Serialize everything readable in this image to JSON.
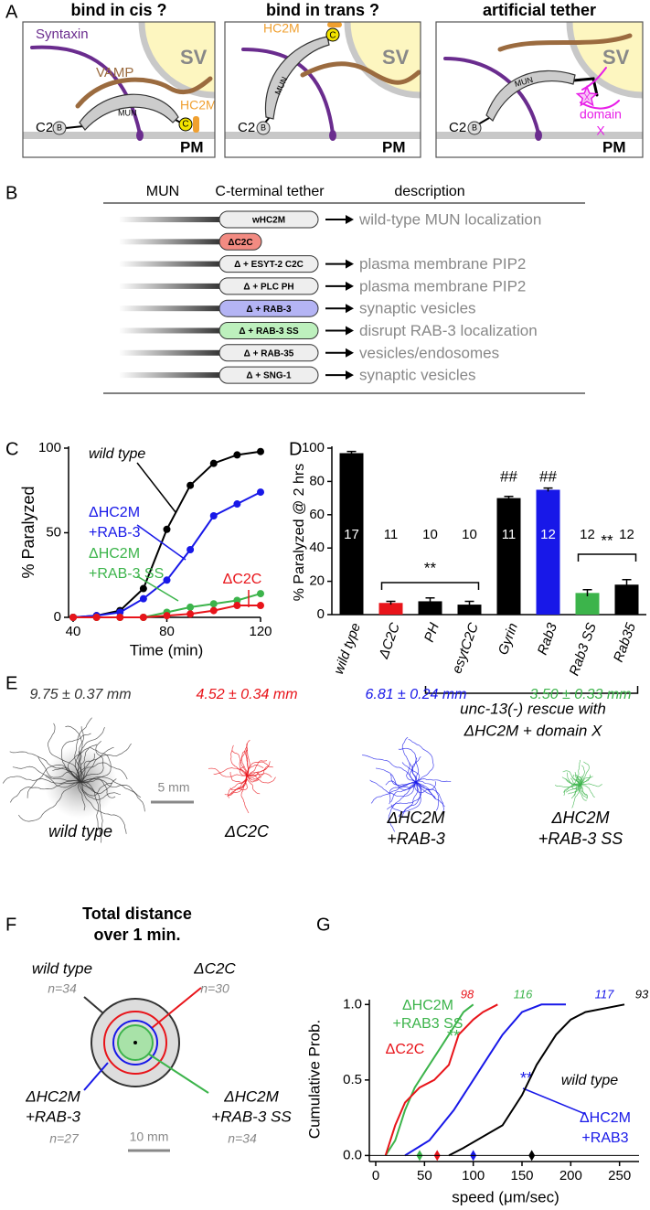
{
  "figure": {
    "panel_labels": [
      "A",
      "B",
      "C",
      "D",
      "E",
      "F",
      "G"
    ],
    "panel_a": {
      "boxes": [
        {
          "title": "bind in cis ?",
          "texts": [
            "Syntaxin",
            "VAMP",
            "MUN",
            "HC2M",
            "C",
            "C2",
            "B",
            "SV",
            "PM"
          ]
        },
        {
          "title": "bind in trans ?",
          "texts": [
            "HC2M",
            "C",
            "MUN",
            "C2",
            "B",
            "SV",
            "PM"
          ]
        },
        {
          "title": "artificial tether",
          "texts": [
            "MUN",
            "X",
            "domain",
            "X",
            "C2",
            "B",
            "SV",
            "PM"
          ]
        }
      ]
    },
    "panel_b": {
      "headers": [
        "MUN",
        "C-terminal tether",
        "description"
      ],
      "rows": [
        {
          "tether": "wHC2M",
          "color": "#eeeeee",
          "description": "wild-type MUN localization"
        },
        {
          "tether": "ΔC2C",
          "color": "#f28b82"
        },
        {
          "tether": "Δ + ESYT-2 C2C",
          "color": "#eeeeee",
          "description": "plasma membrane PIP2"
        },
        {
          "tether": "Δ + PLC PH",
          "color": "#eeeeee",
          "description": "plasma membrane PIP2"
        },
        {
          "tether": "Δ + RAB-3",
          "color": "#b4b4f4",
          "description": "synaptic vesicles"
        },
        {
          "tether": "Δ + RAB-3 SS",
          "color": "#bdf0bd",
          "description": "disrupt RAB-3 localization"
        },
        {
          "tether": "Δ + RAB-35",
          "color": "#eeeeee",
          "description": "vesicles/endosomes"
        },
        {
          "tether": "Δ + SNG-1",
          "color": "#eeeeee",
          "description": "synaptic vesicles"
        }
      ]
    },
    "panel_e": {
      "groups": [
        {
          "value_text": "9.75 ± 0.37 mm",
          "name": [
            "wild type"
          ],
          "color": "#333333"
        },
        {
          "value_text": "4.52 ± 0.34 mm",
          "name": [
            "ΔC2C"
          ],
          "color": "#e8141a"
        },
        {
          "value_text": "6.81 ± 0.24 mm",
          "name": [
            "ΔHC2M",
            "+RAB-3"
          ],
          "color": "#1818e8"
        },
        {
          "value_text": "3.50 ± 0.33 mm",
          "name": [
            "ΔHC2M",
            "+RAB-3 SS"
          ],
          "color": "#3cb44b"
        }
      ],
      "scale": "5 mm"
    },
    "panel_f": {
      "title": [
        "Total distance",
        "over 1 min."
      ],
      "groups": [
        {
          "name": [
            "wild type"
          ],
          "n": "n=34",
          "color": "#333333",
          "fill": "#dddddd"
        },
        {
          "name": [
            "ΔC2C"
          ],
          "n": "n=30",
          "color": "#e8141a"
        },
        {
          "name": [
            "ΔHC2M",
            "+RAB-3"
          ],
          "n": "n=27",
          "color": "#1818e8"
        },
        {
          "name": [
            "ΔHC2M",
            "+RAB-3 SS"
          ],
          "n": "n=34",
          "color": "#3cb44b",
          "fill": "#a8e2a8"
        }
      ],
      "scale": "10 mm"
    }
  },
  "chart_data": [
    {
      "type": "line",
      "ylabel": "% Paralyzed",
      "xlabel": "Time (min)",
      "x": [
        40,
        50,
        60,
        70,
        80,
        90,
        100,
        110,
        120
      ],
      "xlim": [
        40,
        120
      ],
      "xticks": [
        40,
        80,
        120
      ],
      "ylim": [
        0,
        100
      ],
      "yticks": [
        0,
        50,
        100
      ],
      "markers": true,
      "series": [
        {
          "name": [
            "wild type"
          ],
          "color": "#000000",
          "values": [
            0,
            1,
            4,
            17,
            52,
            78,
            91,
            96,
            98
          ]
        },
        {
          "name": [
            "ΔHC2M",
            "+RAB-3"
          ],
          "color": "#1818e8",
          "values": [
            0,
            1,
            3,
            11,
            22,
            40,
            60,
            67,
            74
          ]
        },
        {
          "name": [
            "ΔHC2M",
            "+RAB-3 SS"
          ],
          "color": "#3cb44b",
          "values": [
            0,
            0,
            0,
            0,
            3,
            6,
            8,
            10,
            14
          ]
        },
        {
          "name": [
            "ΔC2C"
          ],
          "color": "#e8141a",
          "values": [
            0,
            0,
            0,
            0,
            1,
            2,
            4,
            7,
            7
          ]
        }
      ]
    },
    {
      "type": "bar",
      "ylabel": "% Paralyzed @ 2 hrs",
      "categories": [
        "wild type",
        "ΔC2C",
        "PH",
        "esytC2C",
        "Gyrin",
        "Rab3",
        "Rab3 SS",
        "Rab35"
      ],
      "values": [
        97,
        7,
        8,
        6,
        70,
        75,
        13,
        18
      ],
      "errors": [
        1,
        1,
        2,
        2,
        1,
        1,
        2,
        3
      ],
      "colors": [
        "#000000",
        "#e8141a",
        "#000000",
        "#000000",
        "#000000",
        "#1818e8",
        "#3cb44b",
        "#000000"
      ],
      "n_labels": [
        17,
        11,
        10,
        10,
        11,
        12,
        12,
        12
      ],
      "ylim": [
        0,
        100
      ],
      "yticks": [
        0,
        20,
        40,
        60,
        80,
        100
      ],
      "annotations": [
        "##",
        "##",
        "**",
        "**"
      ],
      "note": [
        "unc-13(-) rescue with",
        "ΔHC2M + domain X"
      ]
    },
    {
      "type": "line",
      "ylabel": "Cumulative Prob.",
      "xlabel": "speed (μm/sec)",
      "xlim": [
        0,
        270
      ],
      "xticks": [
        0,
        50,
        100,
        150,
        200,
        250
      ],
      "ylim": [
        -0.04,
        1.02
      ],
      "yticks": [
        {
          "value": 0,
          "label": "0.0"
        },
        0.5,
        {
          "value": 1,
          "label": "1.0"
        }
      ],
      "markers": false,
      "series": [
        {
          "name": [
            "ΔHC2M",
            "+RAB3 SS"
          ],
          "color": "#3cb44b",
          "x": [
            10,
            20,
            25,
            30,
            40,
            50,
            60,
            70,
            80,
            90,
            100
          ],
          "values": [
            0,
            0.1,
            0.2,
            0.3,
            0.45,
            0.55,
            0.65,
            0.75,
            0.85,
            0.95,
            1
          ],
          "n": 116,
          "mean": 45,
          "significance": "**"
        },
        {
          "name": [
            "ΔC2C"
          ],
          "color": "#e8141a",
          "x": [
            10,
            20,
            30,
            45,
            60,
            75,
            85,
            100,
            110,
            125
          ],
          "values": [
            0,
            0.2,
            0.35,
            0.45,
            0.5,
            0.6,
            0.8,
            0.9,
            0.95,
            1
          ],
          "n": 98,
          "mean": 63
        },
        {
          "name": [
            "ΔHC2M",
            "+RAB3"
          ],
          "color": "#1818e8",
          "x": [
            30,
            55,
            80,
            100,
            110,
            130,
            150,
            170,
            195
          ],
          "values": [
            0,
            0.1,
            0.3,
            0.5,
            0.6,
            0.8,
            0.95,
            1,
            1
          ],
          "n": 117,
          "mean": 100,
          "significance": "**"
        },
        {
          "name": [
            "wild type"
          ],
          "color": "#000000",
          "x": [
            75,
            90,
            130,
            150,
            165,
            185,
            200,
            215,
            255
          ],
          "values": [
            0,
            0.05,
            0.2,
            0.4,
            0.6,
            0.8,
            0.9,
            0.95,
            1
          ],
          "n": 93,
          "mean": 160
        }
      ]
    }
  ]
}
